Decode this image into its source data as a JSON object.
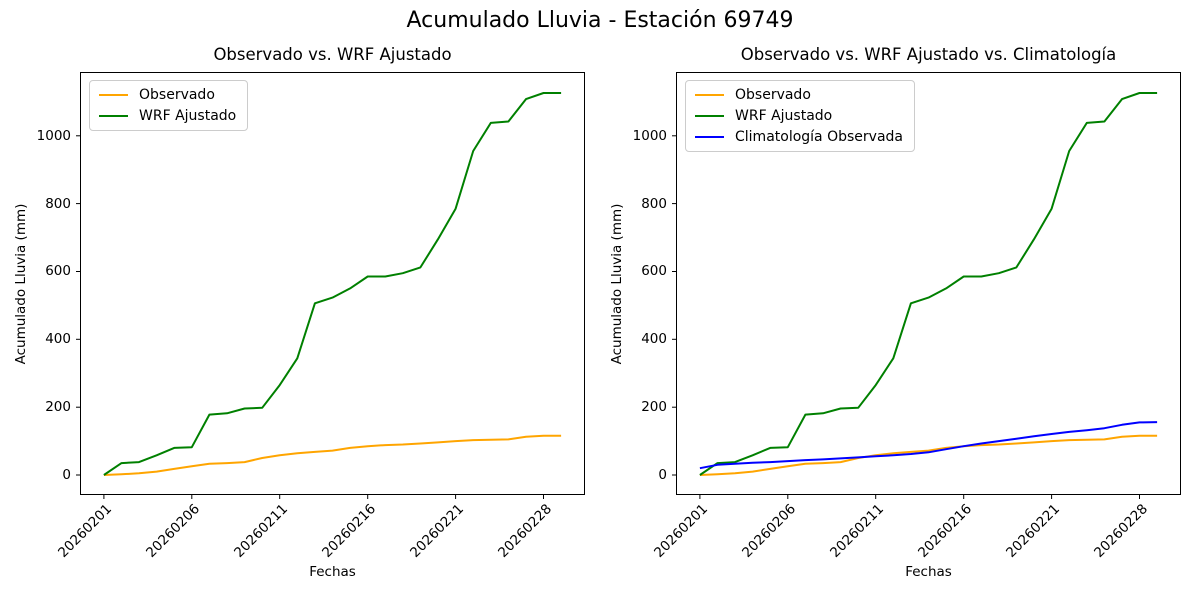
{
  "figure": {
    "suptitle": "Acumulado Lluvia - Estación 69749",
    "background_color": "#ffffff",
    "text_color": "#000000"
  },
  "chart_data": [
    {
      "type": "line",
      "title": "Observado vs. WRF Ajustado",
      "xlabel": "Fechas",
      "ylabel": "Acumulado Lluvia (mm)",
      "grid": false,
      "legend_position": "upper-left",
      "xlim": [
        -1.3,
        27.3
      ],
      "ylim": [
        -56,
        1185
      ],
      "y_ticks": [
        0,
        200,
        400,
        600,
        800,
        1000
      ],
      "x_tick_positions": [
        0,
        5,
        10,
        15,
        20,
        25
      ],
      "x_tick_labels": [
        "20260201",
        "20260206",
        "20260211",
        "20260216",
        "20260221",
        "20260228"
      ],
      "x": [
        0,
        1,
        2,
        3,
        4,
        5,
        6,
        7,
        8,
        9,
        10,
        11,
        12,
        13,
        14,
        15,
        16,
        17,
        18,
        19,
        20,
        21,
        22,
        23,
        24,
        25,
        26
      ],
      "series": [
        {
          "name": "Observado",
          "color": "#FFA500",
          "values": [
            0,
            2,
            5,
            10,
            18,
            26,
            33,
            35,
            38,
            50,
            58,
            64,
            68,
            72,
            80,
            85,
            88,
            90,
            93,
            96,
            100,
            103,
            104,
            105,
            113,
            116,
            116
          ]
        },
        {
          "name": "WRF Ajustado",
          "color": "#008000",
          "values": [
            0,
            35,
            38,
            58,
            80,
            82,
            178,
            182,
            196,
            198,
            265,
            344,
            506,
            523,
            550,
            585,
            585,
            595,
            612,
            695,
            785,
            955,
            1038,
            1042,
            1108,
            1126,
            1126
          ]
        }
      ]
    },
    {
      "type": "line",
      "title": "Observado vs. WRF Ajustado vs. Climatología",
      "xlabel": "Fechas",
      "ylabel": "Acumulado Lluvia (mm)",
      "grid": false,
      "legend_position": "upper-left",
      "xlim": [
        -1.3,
        27.3
      ],
      "ylim": [
        -56,
        1185
      ],
      "y_ticks": [
        0,
        200,
        400,
        600,
        800,
        1000
      ],
      "x_tick_positions": [
        0,
        5,
        10,
        15,
        20,
        25
      ],
      "x_tick_labels": [
        "20260201",
        "20260206",
        "20260211",
        "20260216",
        "20260221",
        "20260228"
      ],
      "x": [
        0,
        1,
        2,
        3,
        4,
        5,
        6,
        7,
        8,
        9,
        10,
        11,
        12,
        13,
        14,
        15,
        16,
        17,
        18,
        19,
        20,
        21,
        22,
        23,
        24,
        25,
        26
      ],
      "series": [
        {
          "name": "Observado",
          "color": "#FFA500",
          "values": [
            0,
            2,
            5,
            10,
            18,
            26,
            33,
            35,
            38,
            50,
            58,
            64,
            68,
            72,
            80,
            85,
            88,
            90,
            93,
            96,
            100,
            103,
            104,
            105,
            113,
            116,
            116
          ]
        },
        {
          "name": "WRF Ajustado",
          "color": "#008000",
          "values": [
            0,
            35,
            38,
            58,
            80,
            82,
            178,
            182,
            196,
            198,
            265,
            344,
            506,
            523,
            550,
            585,
            585,
            595,
            612,
            695,
            785,
            955,
            1038,
            1042,
            1108,
            1126,
            1126
          ]
        },
        {
          "name": "Climatología Observada",
          "color": "#0000FF",
          "values": [
            20,
            30,
            33,
            36,
            38,
            41,
            44,
            46,
            49,
            52,
            55,
            58,
            62,
            67,
            76,
            85,
            93,
            100,
            107,
            114,
            121,
            127,
            132,
            138,
            148,
            155,
            156
          ]
        }
      ]
    }
  ]
}
